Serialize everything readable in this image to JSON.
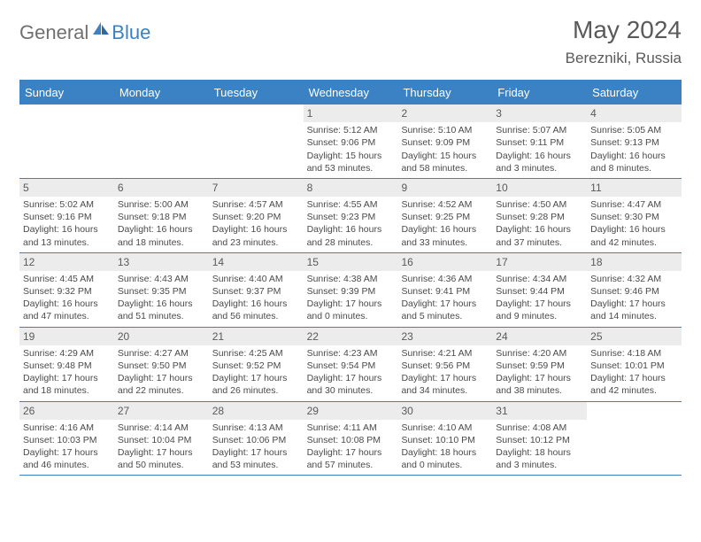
{
  "logo": {
    "part1": "General",
    "part2": "Blue"
  },
  "title": {
    "month": "May 2024",
    "location": "Berezniki, Russia"
  },
  "colors": {
    "accent": "#3a82c4",
    "daynum_bg": "#ececec",
    "text": "#4a4a4a"
  },
  "weekdays": [
    "Sunday",
    "Monday",
    "Tuesday",
    "Wednesday",
    "Thursday",
    "Friday",
    "Saturday"
  ],
  "weeks": [
    [
      {
        "empty": true
      },
      {
        "empty": true
      },
      {
        "empty": true
      },
      {
        "n": "1",
        "sunrise": "Sunrise: 5:12 AM",
        "sunset": "Sunset: 9:06 PM",
        "d1": "Daylight: 15 hours",
        "d2": "and 53 minutes."
      },
      {
        "n": "2",
        "sunrise": "Sunrise: 5:10 AM",
        "sunset": "Sunset: 9:09 PM",
        "d1": "Daylight: 15 hours",
        "d2": "and 58 minutes."
      },
      {
        "n": "3",
        "sunrise": "Sunrise: 5:07 AM",
        "sunset": "Sunset: 9:11 PM",
        "d1": "Daylight: 16 hours",
        "d2": "and 3 minutes."
      },
      {
        "n": "4",
        "sunrise": "Sunrise: 5:05 AM",
        "sunset": "Sunset: 9:13 PM",
        "d1": "Daylight: 16 hours",
        "d2": "and 8 minutes."
      }
    ],
    [
      {
        "n": "5",
        "sunrise": "Sunrise: 5:02 AM",
        "sunset": "Sunset: 9:16 PM",
        "d1": "Daylight: 16 hours",
        "d2": "and 13 minutes."
      },
      {
        "n": "6",
        "sunrise": "Sunrise: 5:00 AM",
        "sunset": "Sunset: 9:18 PM",
        "d1": "Daylight: 16 hours",
        "d2": "and 18 minutes."
      },
      {
        "n": "7",
        "sunrise": "Sunrise: 4:57 AM",
        "sunset": "Sunset: 9:20 PM",
        "d1": "Daylight: 16 hours",
        "d2": "and 23 minutes."
      },
      {
        "n": "8",
        "sunrise": "Sunrise: 4:55 AM",
        "sunset": "Sunset: 9:23 PM",
        "d1": "Daylight: 16 hours",
        "d2": "and 28 minutes."
      },
      {
        "n": "9",
        "sunrise": "Sunrise: 4:52 AM",
        "sunset": "Sunset: 9:25 PM",
        "d1": "Daylight: 16 hours",
        "d2": "and 33 minutes."
      },
      {
        "n": "10",
        "sunrise": "Sunrise: 4:50 AM",
        "sunset": "Sunset: 9:28 PM",
        "d1": "Daylight: 16 hours",
        "d2": "and 37 minutes."
      },
      {
        "n": "11",
        "sunrise": "Sunrise: 4:47 AM",
        "sunset": "Sunset: 9:30 PM",
        "d1": "Daylight: 16 hours",
        "d2": "and 42 minutes."
      }
    ],
    [
      {
        "n": "12",
        "sunrise": "Sunrise: 4:45 AM",
        "sunset": "Sunset: 9:32 PM",
        "d1": "Daylight: 16 hours",
        "d2": "and 47 minutes."
      },
      {
        "n": "13",
        "sunrise": "Sunrise: 4:43 AM",
        "sunset": "Sunset: 9:35 PM",
        "d1": "Daylight: 16 hours",
        "d2": "and 51 minutes."
      },
      {
        "n": "14",
        "sunrise": "Sunrise: 4:40 AM",
        "sunset": "Sunset: 9:37 PM",
        "d1": "Daylight: 16 hours",
        "d2": "and 56 minutes."
      },
      {
        "n": "15",
        "sunrise": "Sunrise: 4:38 AM",
        "sunset": "Sunset: 9:39 PM",
        "d1": "Daylight: 17 hours",
        "d2": "and 0 minutes."
      },
      {
        "n": "16",
        "sunrise": "Sunrise: 4:36 AM",
        "sunset": "Sunset: 9:41 PM",
        "d1": "Daylight: 17 hours",
        "d2": "and 5 minutes."
      },
      {
        "n": "17",
        "sunrise": "Sunrise: 4:34 AM",
        "sunset": "Sunset: 9:44 PM",
        "d1": "Daylight: 17 hours",
        "d2": "and 9 minutes."
      },
      {
        "n": "18",
        "sunrise": "Sunrise: 4:32 AM",
        "sunset": "Sunset: 9:46 PM",
        "d1": "Daylight: 17 hours",
        "d2": "and 14 minutes."
      }
    ],
    [
      {
        "n": "19",
        "sunrise": "Sunrise: 4:29 AM",
        "sunset": "Sunset: 9:48 PM",
        "d1": "Daylight: 17 hours",
        "d2": "and 18 minutes."
      },
      {
        "n": "20",
        "sunrise": "Sunrise: 4:27 AM",
        "sunset": "Sunset: 9:50 PM",
        "d1": "Daylight: 17 hours",
        "d2": "and 22 minutes."
      },
      {
        "n": "21",
        "sunrise": "Sunrise: 4:25 AM",
        "sunset": "Sunset: 9:52 PM",
        "d1": "Daylight: 17 hours",
        "d2": "and 26 minutes."
      },
      {
        "n": "22",
        "sunrise": "Sunrise: 4:23 AM",
        "sunset": "Sunset: 9:54 PM",
        "d1": "Daylight: 17 hours",
        "d2": "and 30 minutes."
      },
      {
        "n": "23",
        "sunrise": "Sunrise: 4:21 AM",
        "sunset": "Sunset: 9:56 PM",
        "d1": "Daylight: 17 hours",
        "d2": "and 34 minutes."
      },
      {
        "n": "24",
        "sunrise": "Sunrise: 4:20 AM",
        "sunset": "Sunset: 9:59 PM",
        "d1": "Daylight: 17 hours",
        "d2": "and 38 minutes."
      },
      {
        "n": "25",
        "sunrise": "Sunrise: 4:18 AM",
        "sunset": "Sunset: 10:01 PM",
        "d1": "Daylight: 17 hours",
        "d2": "and 42 minutes."
      }
    ],
    [
      {
        "n": "26",
        "sunrise": "Sunrise: 4:16 AM",
        "sunset": "Sunset: 10:03 PM",
        "d1": "Daylight: 17 hours",
        "d2": "and 46 minutes."
      },
      {
        "n": "27",
        "sunrise": "Sunrise: 4:14 AM",
        "sunset": "Sunset: 10:04 PM",
        "d1": "Daylight: 17 hours",
        "d2": "and 50 minutes."
      },
      {
        "n": "28",
        "sunrise": "Sunrise: 4:13 AM",
        "sunset": "Sunset: 10:06 PM",
        "d1": "Daylight: 17 hours",
        "d2": "and 53 minutes."
      },
      {
        "n": "29",
        "sunrise": "Sunrise: 4:11 AM",
        "sunset": "Sunset: 10:08 PM",
        "d1": "Daylight: 17 hours",
        "d2": "and 57 minutes."
      },
      {
        "n": "30",
        "sunrise": "Sunrise: 4:10 AM",
        "sunset": "Sunset: 10:10 PM",
        "d1": "Daylight: 18 hours",
        "d2": "and 0 minutes."
      },
      {
        "n": "31",
        "sunrise": "Sunrise: 4:08 AM",
        "sunset": "Sunset: 10:12 PM",
        "d1": "Daylight: 18 hours",
        "d2": "and 3 minutes."
      },
      {
        "empty": true
      }
    ]
  ]
}
